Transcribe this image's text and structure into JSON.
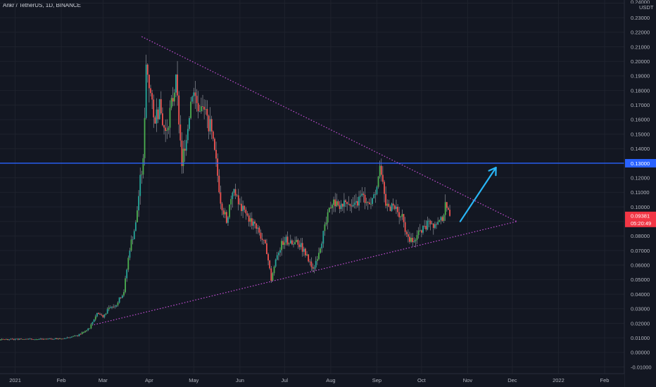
{
  "header": {
    "title": "Ankr / TetherUS, 1D, BINANCE"
  },
  "colors": {
    "background": "#131722",
    "bull": "#26a69a",
    "bull_bright": "#4caf50",
    "bear": "#ef5350",
    "wick": "#d1d4dc",
    "hline": "#2962ff",
    "trendline": "#c74fd8",
    "arrow": "#29b6f6",
    "price_badge": "#f23645",
    "level_badge": "#2962ff"
  },
  "chart_data": {
    "type": "candlestick",
    "currency_label": "USDT",
    "ylim": [
      -0.016,
      0.245
    ],
    "y_ticks": [
      "0.24000",
      "0.23000",
      "0.22000",
      "0.21000",
      "0.20000",
      "0.19000",
      "0.18000",
      "0.17000",
      "0.16000",
      "0.15000",
      "0.14000",
      "0.13000",
      "0.12000",
      "0.11000",
      "0.10000",
      "0.09000",
      "0.08000",
      "0.07000",
      "0.06000",
      "0.05000",
      "0.04000",
      "0.03000",
      "0.02000",
      "0.01000",
      "0.00000",
      "-0.01000"
    ],
    "x_ticks": [
      {
        "label": "2021",
        "date": "2021-01-01"
      },
      {
        "label": "Feb",
        "date": "2021-02-01"
      },
      {
        "label": "Mar",
        "date": "2021-03-01"
      },
      {
        "label": "Apr",
        "date": "2021-04-01"
      },
      {
        "label": "May",
        "date": "2021-05-01"
      },
      {
        "label": "Jun",
        "date": "2021-06-01"
      },
      {
        "label": "Jul",
        "date": "2021-07-01"
      },
      {
        "label": "Aug",
        "date": "2021-08-01"
      },
      {
        "label": "Sep",
        "date": "2021-09-01"
      },
      {
        "label": "Oct",
        "date": "2021-10-01"
      },
      {
        "label": "Nov",
        "date": "2021-11-01"
      },
      {
        "label": "Dec",
        "date": "2021-12-01"
      },
      {
        "label": "2022",
        "date": "2022-01-01"
      },
      {
        "label": "Feb",
        "date": "2022-02-01"
      }
    ],
    "price_path": [
      [
        "2020-12-01",
        0.0085
      ],
      [
        "2020-12-20",
        0.0088
      ],
      [
        "2021-01-05",
        0.0092
      ],
      [
        "2021-01-20",
        0.009
      ],
      [
        "2021-02-01",
        0.0095
      ],
      [
        "2021-02-12",
        0.0115
      ],
      [
        "2021-02-20",
        0.017
      ],
      [
        "2021-02-25",
        0.027
      ],
      [
        "2021-03-01",
        0.025
      ],
      [
        "2021-03-05",
        0.03
      ],
      [
        "2021-03-10",
        0.033
      ],
      [
        "2021-03-15",
        0.042
      ],
      [
        "2021-03-19",
        0.072
      ],
      [
        "2021-03-23",
        0.088
      ],
      [
        "2021-03-26",
        0.118
      ],
      [
        "2021-03-28",
        0.13
      ],
      [
        "2021-03-30",
        0.2
      ],
      [
        "2021-04-01",
        0.185
      ],
      [
        "2021-04-04",
        0.16
      ],
      [
        "2021-04-08",
        0.168
      ],
      [
        "2021-04-12",
        0.15
      ],
      [
        "2021-04-16",
        0.17
      ],
      [
        "2021-04-19",
        0.185
      ],
      [
        "2021-04-21",
        0.16
      ],
      [
        "2021-04-23",
        0.13
      ],
      [
        "2021-04-26",
        0.15
      ],
      [
        "2021-04-30",
        0.18
      ],
      [
        "2021-05-04",
        0.17
      ],
      [
        "2021-05-08",
        0.165
      ],
      [
        "2021-05-12",
        0.155
      ],
      [
        "2021-05-16",
        0.13
      ],
      [
        "2021-05-19",
        0.105
      ],
      [
        "2021-05-23",
        0.09
      ],
      [
        "2021-05-27",
        0.112
      ],
      [
        "2021-06-01",
        0.1
      ],
      [
        "2021-06-05",
        0.095
      ],
      [
        "2021-06-10",
        0.088
      ],
      [
        "2021-06-15",
        0.08
      ],
      [
        "2021-06-19",
        0.07
      ],
      [
        "2021-06-22",
        0.05
      ],
      [
        "2021-06-26",
        0.068
      ],
      [
        "2021-07-01",
        0.078
      ],
      [
        "2021-07-06",
        0.074
      ],
      [
        "2021-07-10",
        0.076
      ],
      [
        "2021-07-15",
        0.068
      ],
      [
        "2021-07-20",
        0.056
      ],
      [
        "2021-07-24",
        0.07
      ],
      [
        "2021-07-28",
        0.085
      ],
      [
        "2021-08-02",
        0.105
      ],
      [
        "2021-08-07",
        0.098
      ],
      [
        "2021-08-12",
        0.105
      ],
      [
        "2021-08-17",
        0.1
      ],
      [
        "2021-08-22",
        0.107
      ],
      [
        "2021-08-26",
        0.103
      ],
      [
        "2021-08-30",
        0.106
      ],
      [
        "2021-09-03",
        0.128
      ],
      [
        "2021-09-07",
        0.101
      ],
      [
        "2021-09-10",
        0.1
      ],
      [
        "2021-09-14",
        0.098
      ],
      [
        "2021-09-18",
        0.092
      ],
      [
        "2021-09-21",
        0.079
      ],
      [
        "2021-09-24",
        0.078
      ],
      [
        "2021-09-28",
        0.08
      ],
      [
        "2021-10-02",
        0.085
      ],
      [
        "2021-10-06",
        0.09
      ],
      [
        "2021-10-10",
        0.088
      ],
      [
        "2021-10-14",
        0.09
      ],
      [
        "2021-10-17",
        0.1
      ],
      [
        "2021-10-20",
        0.0938
      ]
    ],
    "horizontal_levels": [
      {
        "value": 0.13,
        "label": "0.13000"
      }
    ],
    "trendlines": [
      {
        "from": [
          "2021-03-27",
          0.217
        ],
        "to": [
          "2021-12-04",
          0.09
        ]
      },
      {
        "from": [
          "2021-02-23",
          0.019
        ],
        "to": [
          "2021-12-04",
          0.09
        ]
      }
    ],
    "arrow": {
      "from": [
        "2021-10-27",
        0.09
      ],
      "to": [
        "2021-11-20",
        0.127
      ]
    },
    "last_price": {
      "value": 0.09381,
      "label": "0.09381",
      "countdown": "05:20:49"
    }
  }
}
